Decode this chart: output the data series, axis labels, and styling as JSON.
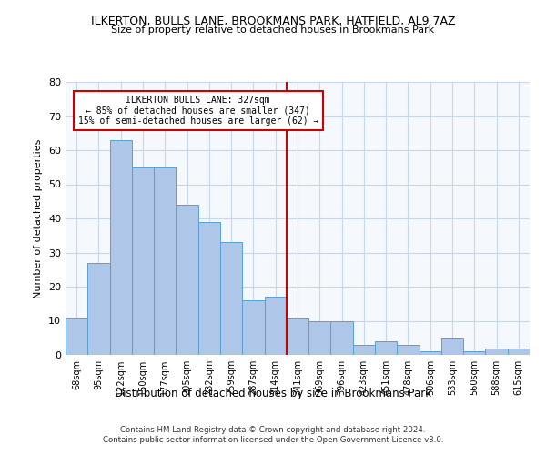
{
  "title": "ILKERTON, BULLS LANE, BROOKMANS PARK, HATFIELD, AL9 7AZ",
  "subtitle": "Size of property relative to detached houses in Brookmans Park",
  "xlabel": "Distribution of detached houses by size in Brookmans Park",
  "ylabel": "Number of detached properties",
  "categories": [
    "68sqm",
    "95sqm",
    "122sqm",
    "150sqm",
    "177sqm",
    "205sqm",
    "232sqm",
    "259sqm",
    "287sqm",
    "314sqm",
    "341sqm",
    "369sqm",
    "396sqm",
    "423sqm",
    "451sqm",
    "478sqm",
    "506sqm",
    "533sqm",
    "560sqm",
    "588sqm",
    "615sqm"
  ],
  "values": [
    11,
    27,
    63,
    55,
    55,
    44,
    39,
    33,
    16,
    17,
    11,
    10,
    10,
    3,
    4,
    3,
    1,
    5,
    1,
    2,
    2
  ],
  "bar_color": "#aec6e8",
  "bar_edge_color": "#5a9fd4",
  "vline_x": 9.5,
  "vline_color": "#cc0000",
  "annotation_text": "ILKERTON BULLS LANE: 327sqm\n← 85% of detached houses are smaller (347)\n15% of semi-detached houses are larger (62) →",
  "annotation_box_color": "#cc0000",
  "ylim": [
    0,
    80
  ],
  "yticks": [
    0,
    10,
    20,
    30,
    40,
    50,
    60,
    70,
    80
  ],
  "grid_color": "#c8d8e8",
  "background_color": "#f5f8fd",
  "footnote1": "Contains HM Land Registry data © Crown copyright and database right 2024.",
  "footnote2": "Contains public sector information licensed under the Open Government Licence v3.0."
}
